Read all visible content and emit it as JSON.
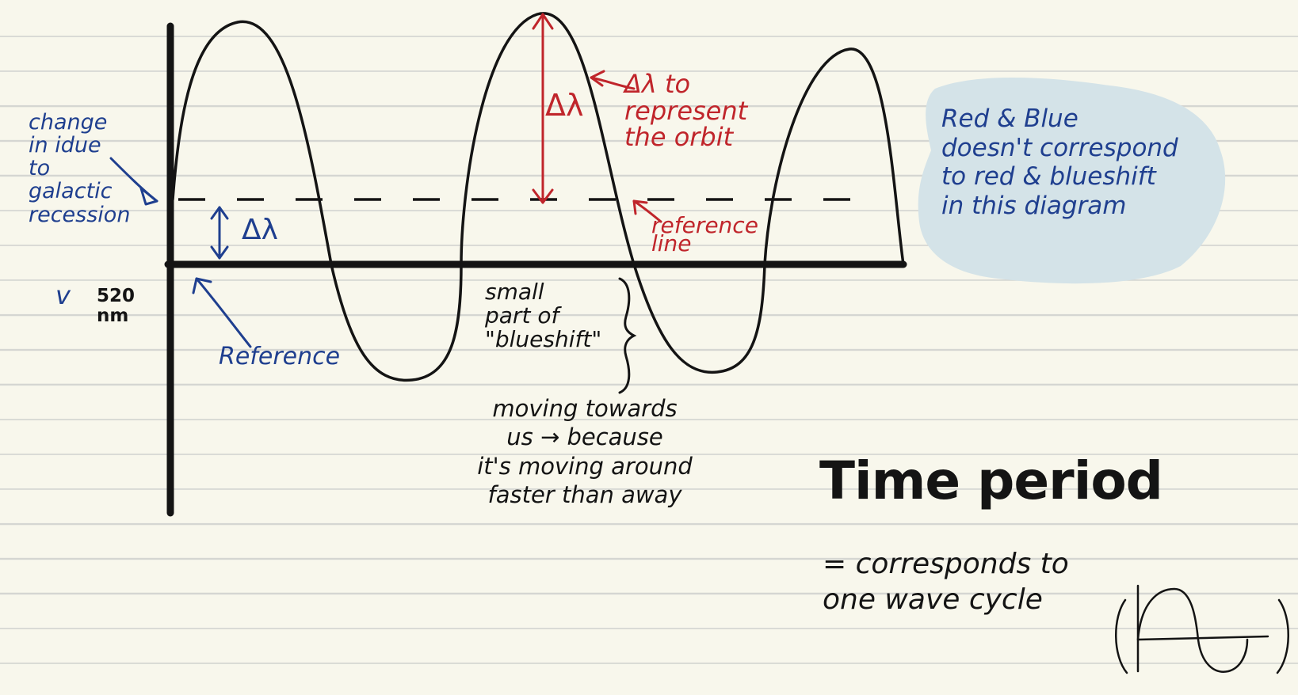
{
  "colors": {
    "paper": "#f8f7ec",
    "rule": "#d5d6d2",
    "ink_black": "#141414",
    "ink_blue": "#1f3f8f",
    "ink_red": "#c0252b",
    "highlight_blue": "#d4e3e8"
  },
  "annotations": {
    "galactic_recession": "change\nin idue\nto\ngalactic\nrecession",
    "wavelength_value": "520\nnm",
    "v_mark": "v",
    "reference": "Reference",
    "delta_lambda_blue": "Δλ",
    "delta_lambda_red": "Δλ",
    "represent_orbit": "Δλ to\nrepresent\nthe orbit",
    "reference_line": "reference\nline",
    "blueshift_part": "small\npart of\n\"blueshift\"",
    "moving_towards": "moving towards\nus → because\nit's moving around\nfaster than away",
    "colors_note": "Red & Blue\ndoesn't correspond\nto red & blueshift\nin this diagram"
  },
  "time_period": {
    "title": "Time period",
    "description": "= corresponds to\none wave cycle"
  }
}
